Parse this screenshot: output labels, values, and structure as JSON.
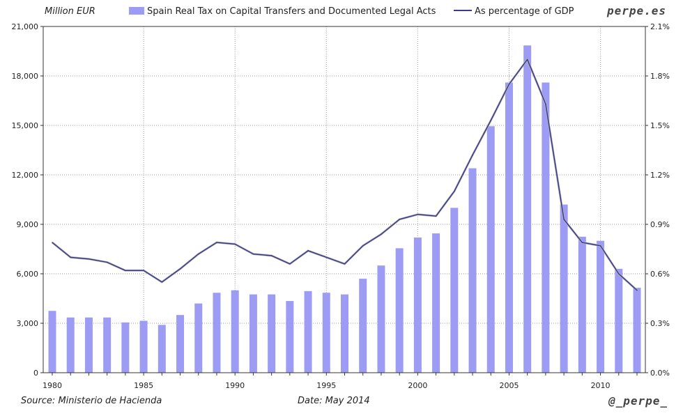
{
  "header": {
    "unit": "Million EUR",
    "brand": "perpe.es"
  },
  "legend": {
    "bar_label": "Spain Real Tax on Capital Transfers and Documented Legal Acts",
    "line_label": "As percentage of GDP"
  },
  "footer": {
    "source": "Source: Ministerio de Hacienda",
    "date": "Date: May 2014",
    "handle": "@_perpe_"
  },
  "colors": {
    "bar": "#9c9cf4",
    "line": "#3a3a8a",
    "grid": "#9a9a9a",
    "axis": "#333333"
  },
  "chart_data": {
    "type": "bar",
    "categories": [
      1980,
      1981,
      1982,
      1983,
      1984,
      1985,
      1986,
      1987,
      1988,
      1989,
      1990,
      1991,
      1992,
      1993,
      1994,
      1995,
      1996,
      1997,
      1998,
      1999,
      2000,
      2001,
      2002,
      2003,
      2004,
      2005,
      2006,
      2007,
      2008,
      2009,
      2010,
      2011,
      2012
    ],
    "x_tick_labels": [
      "1980",
      "1985",
      "1990",
      "1995",
      "2000",
      "2005",
      "2010"
    ],
    "series": [
      {
        "name": "Spain Real Tax on Capital Transfers and Documented Legal Acts",
        "type": "bar",
        "axis": "left",
        "values": [
          3750,
          3350,
          3350,
          3350,
          3050,
          3150,
          2900,
          3500,
          4200,
          4850,
          5000,
          4750,
          4750,
          4350,
          4950,
          4850,
          4750,
          5700,
          6500,
          7550,
          8200,
          8450,
          10000,
          12400,
          14950,
          17600,
          19850,
          17600,
          10200,
          8250,
          8000,
          6300,
          5150
        ]
      },
      {
        "name": "As percentage of GDP",
        "type": "line",
        "axis": "right",
        "values": [
          0.79,
          0.7,
          0.69,
          0.67,
          0.62,
          0.62,
          0.55,
          0.63,
          0.72,
          0.79,
          0.78,
          0.72,
          0.71,
          0.66,
          0.74,
          0.7,
          0.66,
          0.77,
          0.84,
          0.93,
          0.96,
          0.95,
          1.1,
          1.32,
          1.53,
          1.75,
          1.9,
          1.63,
          0.93,
          0.79,
          0.77,
          0.6,
          0.5
        ]
      }
    ],
    "y_left": {
      "min": 0,
      "max": 21000,
      "ticks": [
        "0",
        "3,000",
        "6,000",
        "9,000",
        "12,000",
        "15,000",
        "18,000",
        "21,000"
      ]
    },
    "y_right": {
      "min": 0,
      "max": 2.1,
      "ticks": [
        "0.0%",
        "0.3%",
        "0.6%",
        "0.9%",
        "1.2%",
        "1.5%",
        "1.8%",
        "2.1%"
      ]
    },
    "grid": true,
    "legend_position": "top"
  }
}
